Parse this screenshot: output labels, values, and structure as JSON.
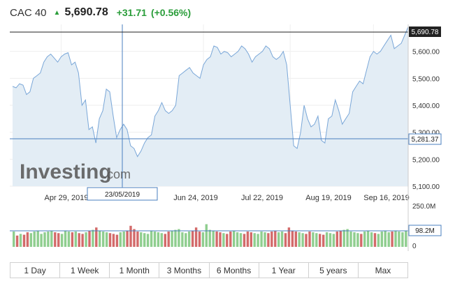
{
  "header": {
    "instrument": "CAC 40",
    "price": "5,690.78",
    "change": "+31.71",
    "change_pct": "(+0.56%)"
  },
  "crosshair": {
    "date_label": "23/05/2019",
    "value_label": "5,281.37"
  },
  "watermark": {
    "brand": "Investing",
    "suffix": ".com"
  },
  "last_price_label": "5,690.78",
  "volume_labels": {
    "top": "250.0M",
    "current": "98.2M",
    "bottom": "0"
  },
  "ranges": [
    "1 Day",
    "1 Week",
    "1 Month",
    "3 Months",
    "6 Months",
    "1 Year",
    "5 years",
    "Max"
  ],
  "colors": {
    "up": "#2a9d3a",
    "line": "#7aa7d8",
    "area": "#e3edf5",
    "vol_up": "#8fce8f",
    "vol_down": "#d36a6a"
  },
  "chart_data": {
    "type": "area",
    "x_tick_labels": [
      "Apr 29, 2019",
      "Jun 24, 2019",
      "Jul 22, 2019",
      "Aug 19, 2019",
      "Sep 16, 2019"
    ],
    "y_tick_labels": [
      "5,600.00",
      "5,500.00",
      "5,400.00",
      "5,300.00",
      "5,200.00",
      "5,100.00"
    ],
    "ylim": [
      5100,
      5700
    ],
    "series": [
      {
        "values": [
          5470,
          5465,
          5480,
          5475,
          5440,
          5450,
          5500,
          5510,
          5520,
          5560,
          5580,
          5590,
          5575,
          5560,
          5580,
          5590,
          5595,
          5550,
          5560,
          5520,
          5400,
          5420,
          5310,
          5320,
          5260,
          5350,
          5380,
          5460,
          5450,
          5360,
          5280,
          5310,
          5330,
          5310,
          5250,
          5240,
          5210,
          5230,
          5260,
          5280,
          5290,
          5360,
          5380,
          5410,
          5380,
          5370,
          5380,
          5400,
          5510,
          5520,
          5530,
          5540,
          5520,
          5510,
          5500,
          5550,
          5570,
          5580,
          5620,
          5615,
          5590,
          5600,
          5595,
          5580,
          5590,
          5600,
          5620,
          5610,
          5590,
          5560,
          5580,
          5590,
          5600,
          5620,
          5610,
          5580,
          5570,
          5580,
          5600,
          5550,
          5400,
          5250,
          5240,
          5300,
          5400,
          5350,
          5320,
          5330,
          5360,
          5270,
          5260,
          5350,
          5360,
          5420,
          5380,
          5330,
          5350,
          5370,
          5450,
          5470,
          5490,
          5480,
          5530,
          5580,
          5600,
          5590,
          5600,
          5620,
          5640,
          5660,
          5610,
          5620,
          5630,
          5660,
          5691
        ],
        "volume_millions": [
          95,
          70,
          80,
          75,
          90,
          85,
          95,
          100,
          80,
          90,
          95,
          100,
          90,
          85,
          80,
          100,
          95,
          90,
          95,
          85,
          80,
          90,
          100,
          105,
          120,
          100,
          95,
          90,
          85,
          80,
          75,
          90,
          95,
          100,
          130,
          110,
          95,
          90,
          85,
          80,
          100,
          95,
          90,
          85,
          80,
          95,
          100,
          105,
          110,
          90,
          85,
          95,
          100,
          120,
          95,
          90,
          140,
          105,
          100,
          95,
          90,
          85,
          80,
          95,
          100,
          90,
          85,
          80,
          95,
          90,
          85,
          80,
          95,
          90,
          85,
          95,
          100,
          90,
          95,
          85,
          120,
          100,
          95,
          90,
          85,
          80,
          95,
          90,
          85,
          80,
          75,
          90,
          85,
          80,
          95,
          100,
          105,
          110,
          95,
          90,
          85,
          80,
          95,
          100,
          90,
          85,
          80,
          95,
          100,
          90,
          95,
          100,
          95,
          90,
          98
        ]
      }
    ],
    "grid": true,
    "legend": "none"
  }
}
